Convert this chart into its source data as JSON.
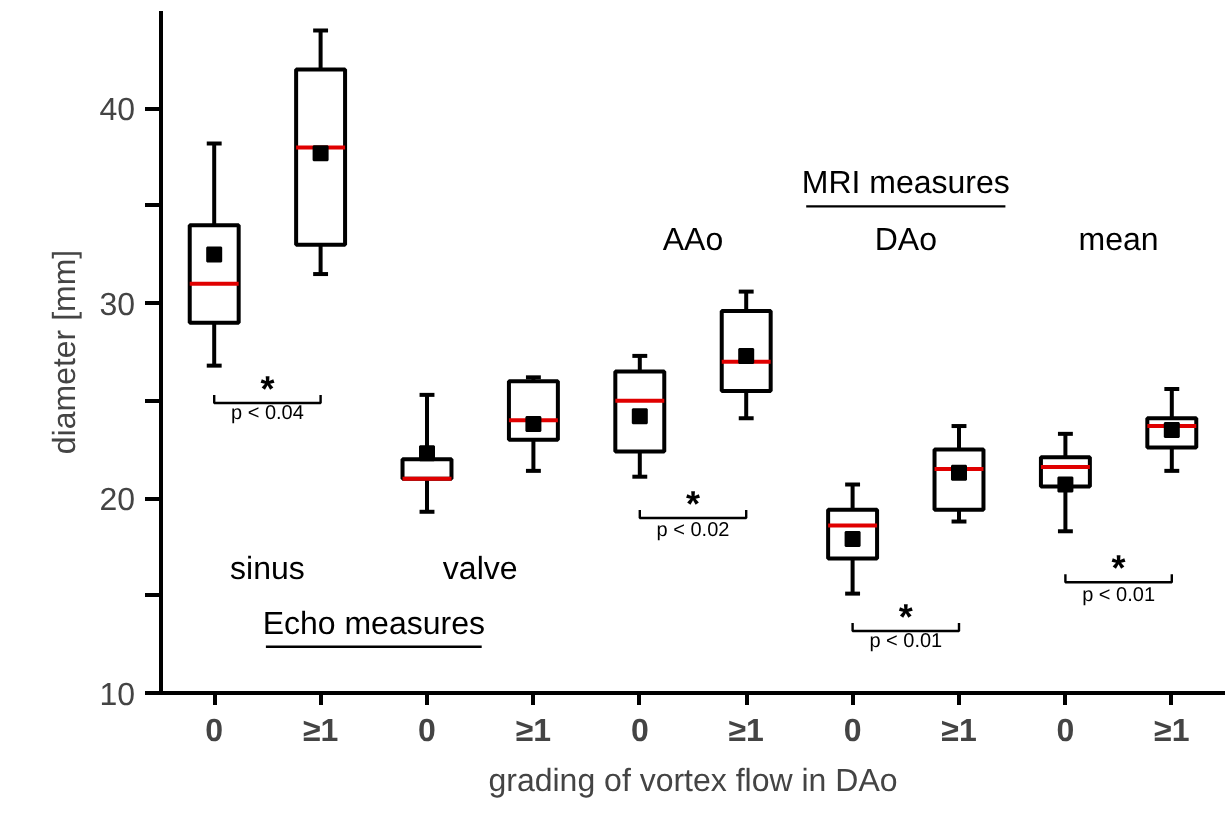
{
  "chart_data": {
    "type": "box",
    "xlabel": "grading of vortex flow in DAo",
    "ylabel": "diameter [mm]",
    "color": "#000000",
    "categories": [
      "0",
      "≥1",
      "0",
      "≥1",
      "0",
      "≥1",
      "0",
      "≥1",
      "0",
      "≥1"
    ],
    "ylim": [
      10,
      45
    ],
    "yticks": [
      10,
      {
        "value": 15,
        "label": null
      },
      20,
      {
        "value": 25,
        "label": null
      },
      30,
      {
        "value": 35,
        "label": null
      },
      40
    ],
    "boxes": [
      {
        "low": 26.8,
        "q1": 29.0,
        "median": 31.0,
        "q3": 34.0,
        "high": 38.2,
        "mean": 32.5
      },
      {
        "low": 31.5,
        "q1": 33.0,
        "median": 38.0,
        "q3": 42.0,
        "high": 44.0,
        "mean": 37.7
      },
      {
        "low": 19.3,
        "q1": 21.0,
        "median": 21.0,
        "q3": 22.0,
        "high": 25.3,
        "mean": 22.3
      },
      {
        "low": 21.4,
        "q1": 23.0,
        "median": 24.0,
        "q3": 26.0,
        "high": 26.2,
        "mean": 23.8
      },
      {
        "low": 21.1,
        "q1": 22.4,
        "median": 25.0,
        "q3": 26.5,
        "high": 27.3,
        "mean": 24.2
      },
      {
        "low": 24.1,
        "q1": 25.5,
        "median": 27.0,
        "q3": 29.6,
        "high": 30.6,
        "mean": 27.3
      },
      {
        "low": 15.1,
        "q1": 16.9,
        "median": 18.6,
        "q3": 19.4,
        "high": 20.7,
        "mean": 17.9
      },
      {
        "low": 18.8,
        "q1": 19.4,
        "median": 21.5,
        "q3": 22.5,
        "high": 23.7,
        "mean": 21.3
      },
      {
        "low": 18.3,
        "q1": 20.6,
        "median": 21.6,
        "q3": 22.1,
        "high": 23.3,
        "mean": 20.7
      },
      {
        "low": 21.4,
        "q1": 22.6,
        "median": 23.7,
        "q3": 24.1,
        "high": 25.6,
        "mean": 23.5
      }
    ],
    "annotations": [
      "sinus",
      "valve",
      "AAo",
      "DAo",
      "mean",
      "Echo measures",
      "MRI measures",
      "*",
      "p < 0.04",
      "*",
      "p < 0.02",
      "*",
      "p < 0.01",
      "*",
      "p < 0.01"
    ]
  }
}
